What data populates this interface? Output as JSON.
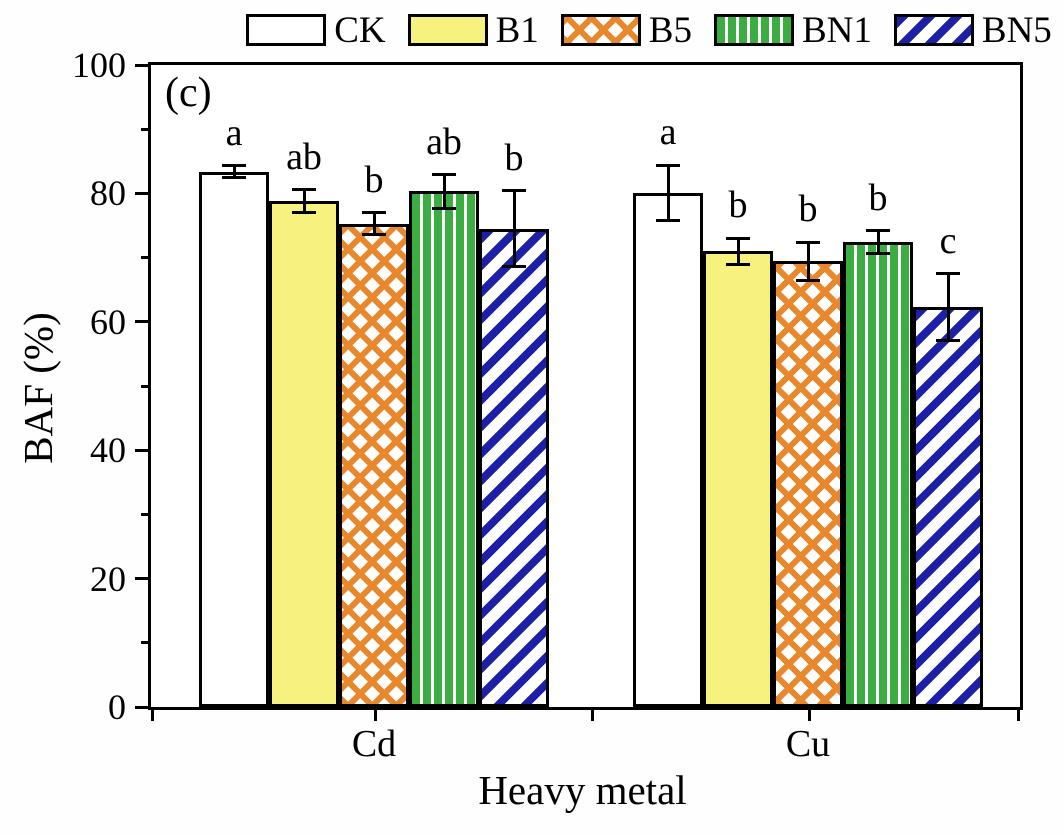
{
  "panel_label": "(c)",
  "chart_data": {
    "type": "bar",
    "title": "",
    "xlabel": "Heavy metal",
    "ylabel": "BAF (%)",
    "ylim": [
      0,
      100
    ],
    "yticks_major": [
      0,
      20,
      40,
      60,
      80,
      100
    ],
    "yticks_minor": [
      10,
      30,
      50,
      70,
      90
    ],
    "grid": false,
    "legend_position": "top",
    "categories": [
      "Cd",
      "Cu"
    ],
    "series": [
      {
        "name": "CK",
        "pattern": "solid-white",
        "values": [
          83.4,
          80.1
        ],
        "errors": [
          0.9,
          4.3
        ],
        "sig_letters": [
          "a",
          "a"
        ]
      },
      {
        "name": "B1",
        "pattern": "solid-yellow",
        "values": [
          78.8,
          71.0
        ],
        "errors": [
          1.8,
          2.0
        ],
        "sig_letters": [
          "ab",
          "b"
        ]
      },
      {
        "name": "B5",
        "pattern": "orange-crosshatch",
        "values": [
          75.3,
          69.4
        ],
        "errors": [
          1.7,
          3.0
        ],
        "sig_letters": [
          "b",
          "b"
        ]
      },
      {
        "name": "BN1",
        "pattern": "green-vertical-stripes",
        "values": [
          80.3,
          72.4
        ],
        "errors": [
          2.6,
          1.8
        ],
        "sig_letters": [
          "ab",
          "b"
        ]
      },
      {
        "name": "BN5",
        "pattern": "blue-diagonal-stripes",
        "values": [
          74.5,
          62.3
        ],
        "errors": [
          5.9,
          5.2
        ],
        "sig_letters": [
          "b",
          "c"
        ]
      }
    ],
    "colors": {
      "bar_border": "#000000",
      "ck_fill": "#ffffff",
      "b1_fill": "#f7f27e",
      "b5_hatch": "#e8872b",
      "bn1_stripe": "#3bad41",
      "bn5_stripe": "#1b20a6"
    }
  }
}
